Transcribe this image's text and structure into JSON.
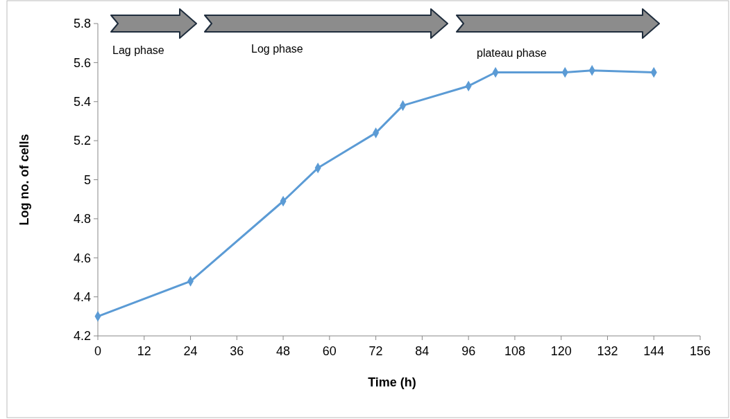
{
  "chart_data": {
    "type": "line",
    "xlabel": "Time (h)",
    "ylabel": "Log no. of cells",
    "x": [
      0,
      24,
      48,
      57,
      72,
      79,
      96,
      103,
      121,
      128,
      144
    ],
    "series": [
      {
        "color": "#5b9bd5",
        "values": [
          4.3,
          4.48,
          4.89,
          5.06,
          5.24,
          5.38,
          5.48,
          5.55,
          5.55,
          5.56,
          5.55
        ]
      }
    ],
    "xlim": [
      0,
      156
    ],
    "xticks": [
      0,
      12,
      24,
      36,
      48,
      60,
      72,
      84,
      96,
      108,
      120,
      132,
      144,
      156
    ],
    "ylim": [
      4.2,
      5.8
    ],
    "yticks": [
      4.2,
      4.4,
      4.6,
      4.8,
      5,
      5.2,
      5.4,
      5.6,
      5.8
    ],
    "marker": "diamond",
    "line_style": "solid",
    "grid": false,
    "annotations": [
      "Lag phase",
      "Log phase",
      "plateau phase"
    ]
  }
}
